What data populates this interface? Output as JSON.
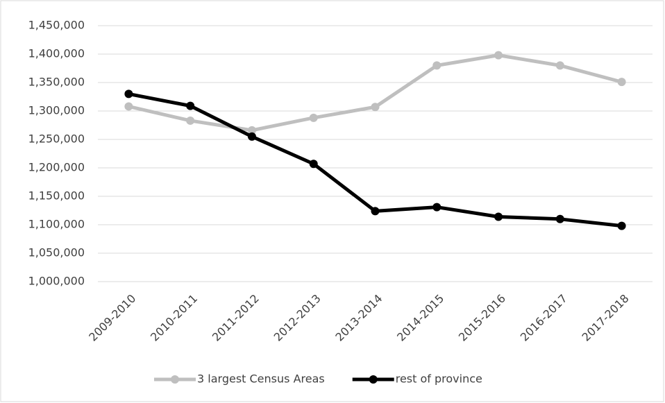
{
  "chart_data": {
    "type": "line",
    "categories": [
      "2009-2010",
      "2010-2011",
      "2011-2012",
      "2012-2013",
      "2013-2014",
      "2014-2015",
      "2015-2016",
      "2016-2017",
      "2017-2018"
    ],
    "series": [
      {
        "name": "3 largest Census Areas",
        "color": "#bfbfbf",
        "values": [
          1308000,
          1283000,
          1266000,
          1288000,
          1307000,
          1380000,
          1398000,
          1380000,
          1351000
        ]
      },
      {
        "name": "rest of province",
        "color": "#000000",
        "values": [
          1330000,
          1309000,
          1255000,
          1207000,
          1124000,
          1131000,
          1114000,
          1110000,
          1098000
        ]
      }
    ],
    "ylim": [
      1000000,
      1450000
    ],
    "yticks": [
      {
        "value": 1000000,
        "label": "1,000,000"
      },
      {
        "value": 1050000,
        "label": "1,050,000"
      },
      {
        "value": 1100000,
        "label": "1,100,000"
      },
      {
        "value": 1150000,
        "label": "1,150,000"
      },
      {
        "value": 1200000,
        "label": "1,200,000"
      },
      {
        "value": 1250000,
        "label": "1,250,000"
      },
      {
        "value": 1300000,
        "label": "1,300,000"
      },
      {
        "value": 1350000,
        "label": "1,350,000"
      },
      {
        "value": 1400000,
        "label": "1,400,000"
      },
      {
        "value": 1450000,
        "label": "1,450,000"
      }
    ],
    "grid": true,
    "legend": "bottom"
  }
}
